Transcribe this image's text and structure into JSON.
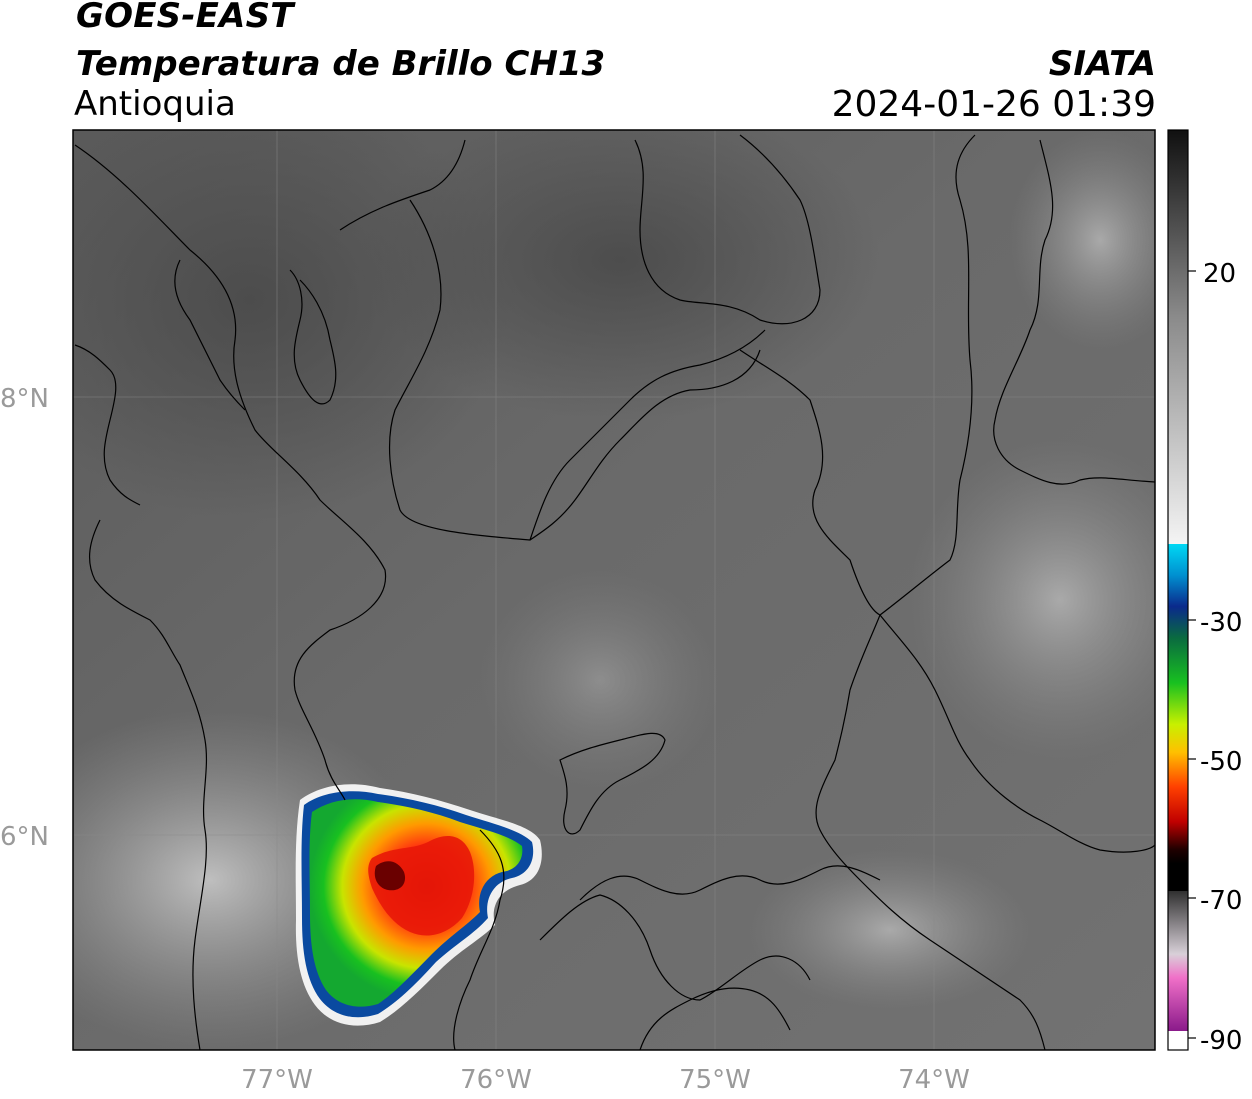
{
  "header": {
    "satellite": "GOES-EAST",
    "product": "Temperatura de Brillo CH13",
    "region": "Antioquia",
    "organization": "SIATA",
    "datetime": "2024-01-26 01:39"
  },
  "axes": {
    "lat_ticks": [
      {
        "label": "8°N",
        "value": 8
      },
      {
        "label": "6°N",
        "value": 6
      }
    ],
    "lon_ticks": [
      {
        "label": "77°W",
        "value": -77
      },
      {
        "label": "76°W",
        "value": -76
      },
      {
        "label": "75°W",
        "value": -75
      },
      {
        "label": "74°W",
        "value": -74
      }
    ]
  },
  "colorbar": {
    "ticks": [
      {
        "label": "20",
        "value": 20
      },
      {
        "label": "-30",
        "value": -30
      },
      {
        "label": "-50",
        "value": -50
      },
      {
        "label": "-70",
        "value": -70
      },
      {
        "label": "-90",
        "value": -90
      }
    ],
    "colors": {
      "warm_dark": "#141414",
      "gray_mid": "#8a8a8a",
      "gray_light": "#f2f2f2",
      "cyan": "#00d4f0",
      "blue": "#0a2a8c",
      "green": "#10c020",
      "yellow": "#e8f000",
      "orange": "#ffa000",
      "red": "#e00000",
      "dark_red": "#3a0000",
      "black": "#000000",
      "pink": "#f070c8",
      "purple": "#8a1a8a",
      "white": "#ffffff"
    }
  },
  "map": {
    "storm_cell": {
      "description_color_core": "#e01010"
    }
  }
}
